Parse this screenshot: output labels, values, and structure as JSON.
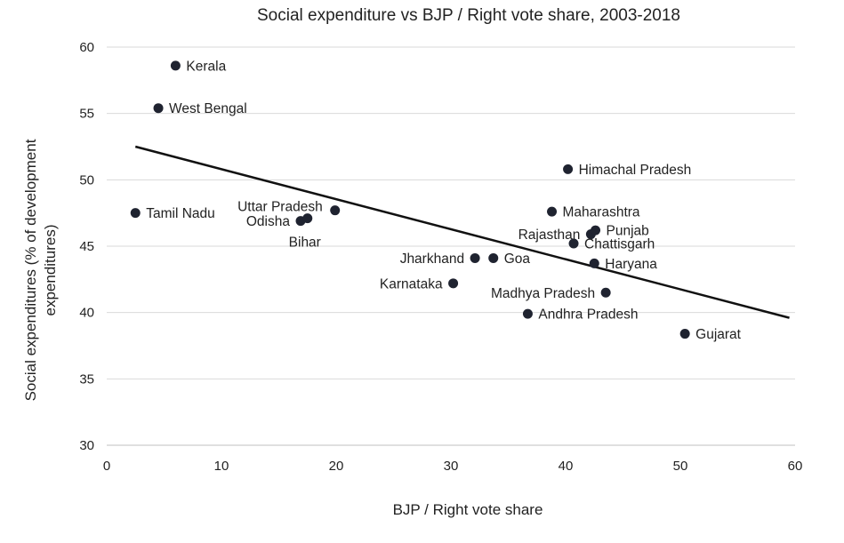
{
  "chart_data": {
    "type": "scatter",
    "title": "Social expenditure vs BJP / Right vote share, 2003-2018",
    "xlabel": "BJP / Right vote share",
    "ylabel_lines": [
      "Social expenditures (% of development",
      "expenditures)"
    ],
    "xlim": [
      0,
      60
    ],
    "ylim": [
      30,
      60
    ],
    "x_ticks": [
      0,
      10,
      20,
      30,
      40,
      50,
      60
    ],
    "y_ticks": [
      30,
      35,
      40,
      45,
      50,
      55,
      60
    ],
    "grid": "horizontal",
    "marker_color": "#1f2330",
    "trendline": {
      "x": [
        2.5,
        59.5
      ],
      "y": [
        52.5,
        39.6
      ]
    },
    "points": [
      {
        "label": "Kerala",
        "x": 6.0,
        "y": 58.6,
        "anchor": "right"
      },
      {
        "label": "West Bengal",
        "x": 4.5,
        "y": 55.4,
        "anchor": "right"
      },
      {
        "label": "Tamil Nadu",
        "x": 2.5,
        "y": 47.5,
        "anchor": "right"
      },
      {
        "label": "Uttar Pradesh",
        "x": 19.9,
        "y": 47.7,
        "anchor": "upper-left"
      },
      {
        "label": "Odisha",
        "x": 16.9,
        "y": 46.9,
        "anchor": "left"
      },
      {
        "label": "Bihar",
        "x": 17.5,
        "y": 47.1,
        "anchor": "below"
      },
      {
        "label": "Himachal Pradesh",
        "x": 40.2,
        "y": 50.8,
        "anchor": "right"
      },
      {
        "label": "Maharashtra",
        "x": 38.8,
        "y": 47.6,
        "anchor": "right"
      },
      {
        "label": "Rajasthan",
        "x": 42.2,
        "y": 45.9,
        "anchor": "left"
      },
      {
        "label": "Punjab",
        "x": 42.6,
        "y": 46.2,
        "anchor": "right"
      },
      {
        "label": "Chattisgarh",
        "x": 40.7,
        "y": 45.2,
        "anchor": "right"
      },
      {
        "label": "Jharkhand",
        "x": 32.1,
        "y": 44.1,
        "anchor": "left"
      },
      {
        "label": "Goa",
        "x": 33.7,
        "y": 44.1,
        "anchor": "right"
      },
      {
        "label": "Haryana",
        "x": 42.5,
        "y": 43.7,
        "anchor": "right"
      },
      {
        "label": "Karnataka",
        "x": 30.2,
        "y": 42.2,
        "anchor": "left"
      },
      {
        "label": "Madhya Pradesh",
        "x": 43.5,
        "y": 41.5,
        "anchor": "left"
      },
      {
        "label": "Andhra Pradesh",
        "x": 36.7,
        "y": 39.9,
        "anchor": "right"
      },
      {
        "label": "Gujarat",
        "x": 50.4,
        "y": 38.4,
        "anchor": "right"
      }
    ]
  }
}
